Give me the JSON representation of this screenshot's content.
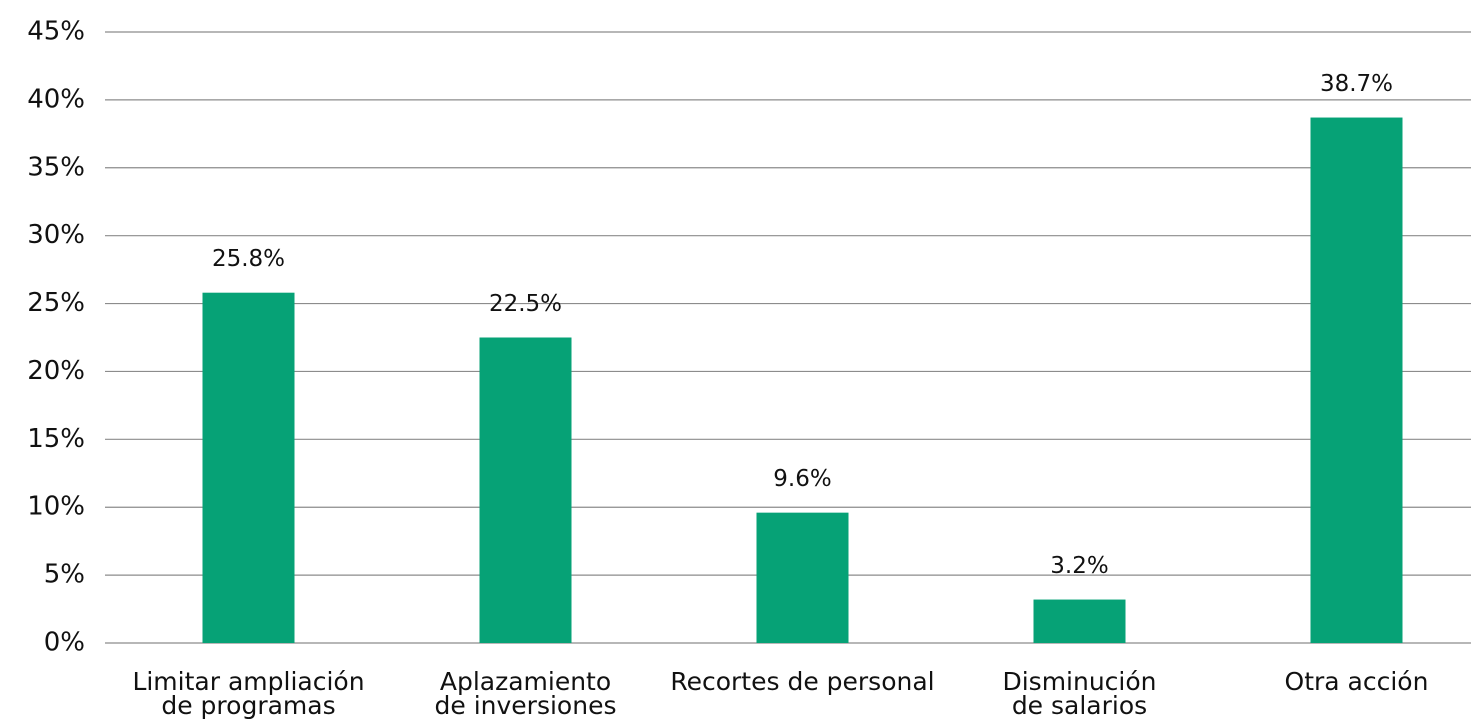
{
  "chart_data": {
    "type": "bar",
    "categories": [
      "Limitar ampliación\nde programas",
      "Aplazamiento\nde inversiones",
      "Recortes de personal",
      "Disminución\nde salarios",
      "Otra acción"
    ],
    "values": [
      25.8,
      22.5,
      9.6,
      3.2,
      38.7
    ],
    "value_labels": [
      "25.8%",
      "22.5%",
      "9.6%",
      "3.2%",
      "38.7%"
    ],
    "color": "#06a276",
    "ylim": [
      0,
      45
    ],
    "yticks": [
      {
        "value": 0,
        "label": "0%"
      },
      {
        "value": 5,
        "label": "5%"
      },
      {
        "value": 10,
        "label": "10%"
      },
      {
        "value": 15,
        "label": "15%"
      },
      {
        "value": 20,
        "label": "20%"
      },
      {
        "value": 25,
        "label": "25%"
      },
      {
        "value": 30,
        "label": "30%"
      },
      {
        "value": 35,
        "label": "35%"
      },
      {
        "value": 40,
        "label": "40%"
      },
      {
        "value": 45,
        "label": "45%"
      }
    ],
    "grid": true
  }
}
